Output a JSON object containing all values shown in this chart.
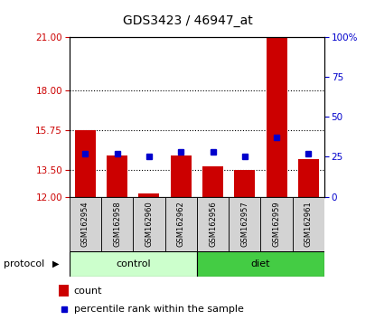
{
  "title": "GDS3423 / 46947_at",
  "samples": [
    "GSM162954",
    "GSM162958",
    "GSM162960",
    "GSM162962",
    "GSM162956",
    "GSM162957",
    "GSM162959",
    "GSM162961"
  ],
  "groups": [
    "control",
    "control",
    "control",
    "control",
    "diet",
    "diet",
    "diet",
    "diet"
  ],
  "count_values": [
    15.75,
    14.3,
    12.2,
    14.3,
    13.7,
    13.5,
    21.0,
    14.1
  ],
  "percentile_values": [
    27.0,
    27.0,
    25.0,
    28.0,
    28.0,
    25.0,
    37.0,
    27.0
  ],
  "ylim_left": [
    12,
    21
  ],
  "ylim_right": [
    0,
    100
  ],
  "yticks_left": [
    12,
    13.5,
    15.75,
    18,
    21
  ],
  "yticks_right": [
    0,
    25,
    50,
    75,
    100
  ],
  "ytick_right_labels": [
    "0",
    "25",
    "50",
    "75",
    "100%"
  ],
  "dotted_yticks": [
    13.5,
    15.75,
    18
  ],
  "bar_color": "#cc0000",
  "percentile_color": "#0000cc",
  "control_color": "#ccffcc",
  "diet_color": "#44cc44",
  "left_tick_color": "#cc0000",
  "right_tick_color": "#0000cc",
  "bar_width": 0.65,
  "percentile_marker_size": 5,
  "legend_count_label": "count",
  "legend_percentile_label": "percentile rank within the sample",
  "protocol_label": "protocol",
  "control_label": "control",
  "diet_label": "diet"
}
